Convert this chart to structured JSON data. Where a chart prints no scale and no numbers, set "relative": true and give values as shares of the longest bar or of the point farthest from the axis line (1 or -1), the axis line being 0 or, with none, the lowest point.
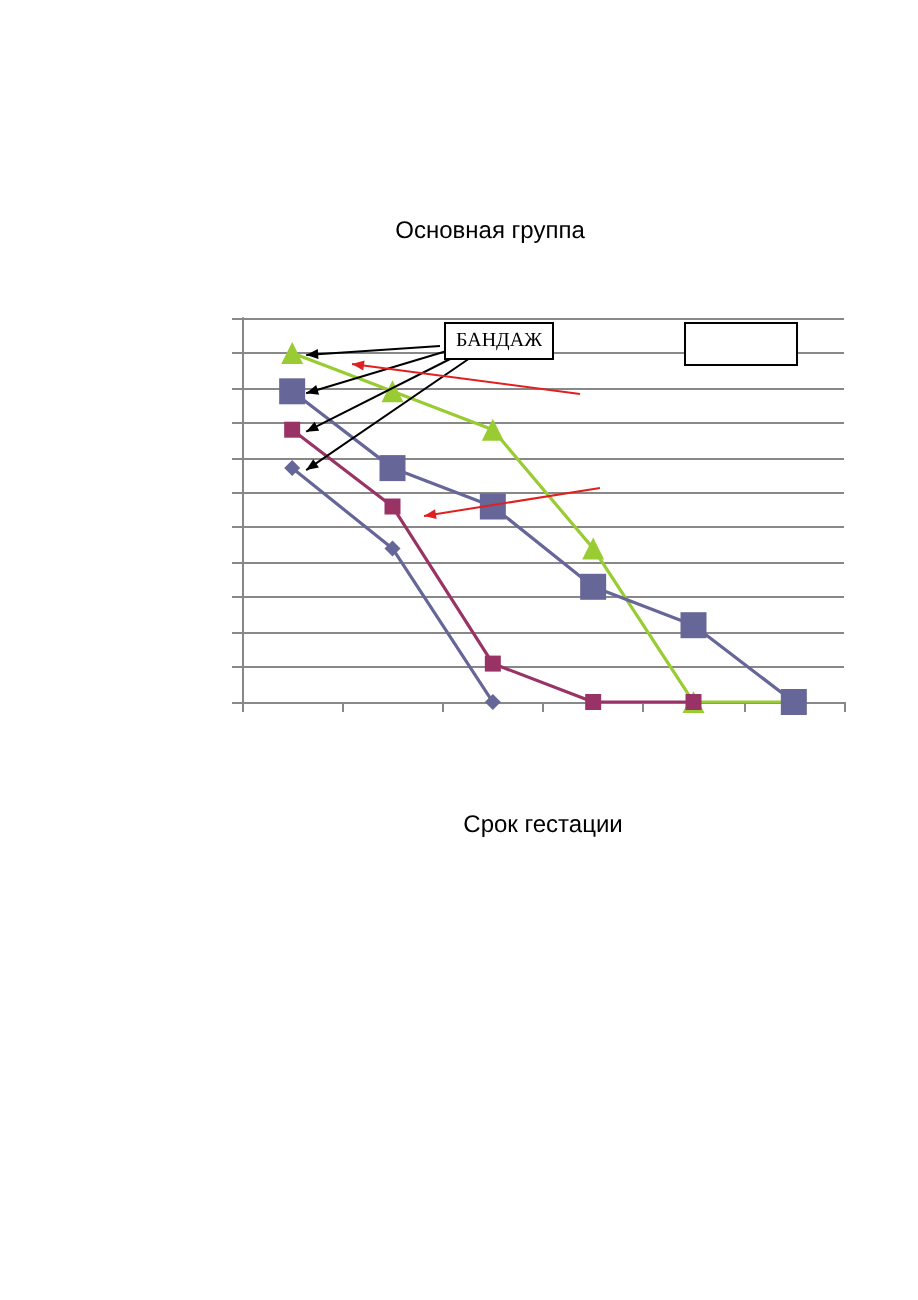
{
  "chart_data": {
    "type": "line",
    "title": "Основная группа",
    "xlabel": "Срок гестации",
    "relative": true,
    "grid": "y",
    "annotations": [
      "БАНДАЖ"
    ],
    "categories": [
      null,
      null,
      null,
      null,
      null,
      null
    ],
    "series": [
      {
        "color": "#99cc33",
        "marker": "triangle",
        "values": [
          1,
          0.89,
          0.78,
          0.44,
          0,
          0
        ]
      },
      {
        "color": "#666699",
        "marker": "square",
        "values": [
          0.89,
          0.67,
          0.56,
          0.33,
          0.22,
          0
        ]
      },
      {
        "color": "#993366",
        "marker": "square",
        "values": [
          0.78,
          0.56,
          0.11,
          0,
          0,
          null
        ]
      },
      {
        "color": "#666699",
        "marker": "diamond",
        "values": [
          0.67,
          0.44,
          0,
          null,
          null,
          null
        ]
      }
    ]
  }
}
